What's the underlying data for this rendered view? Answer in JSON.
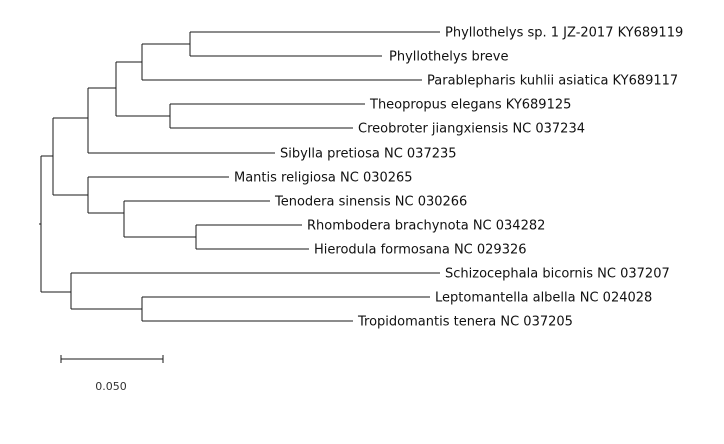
{
  "tree": {
    "taxa": [
      "Phyllothelys sp. 1 JZ-2017 KY689119",
      "Phyllothelys breve",
      "Parablepharis kuhlii asiatica KY689117",
      "Theopropus elegans KY689125",
      "Creobroter jiangxiensis NC 037234",
      "Sibylla pretiosa NC 037235",
      "Mantis religiosa NC 030265",
      "Tenodera sinensis  NC 030266",
      "Rhombodera brachynota NC 034282",
      "Hierodula formosana NC 029326",
      "Schizocephala bicornis NC 037207",
      "Leptomantella albella NC 024028",
      "Tropidomantis tenera NC 037205"
    ]
  },
  "scale_bar": {
    "label": "0.050",
    "value": 0.05
  }
}
